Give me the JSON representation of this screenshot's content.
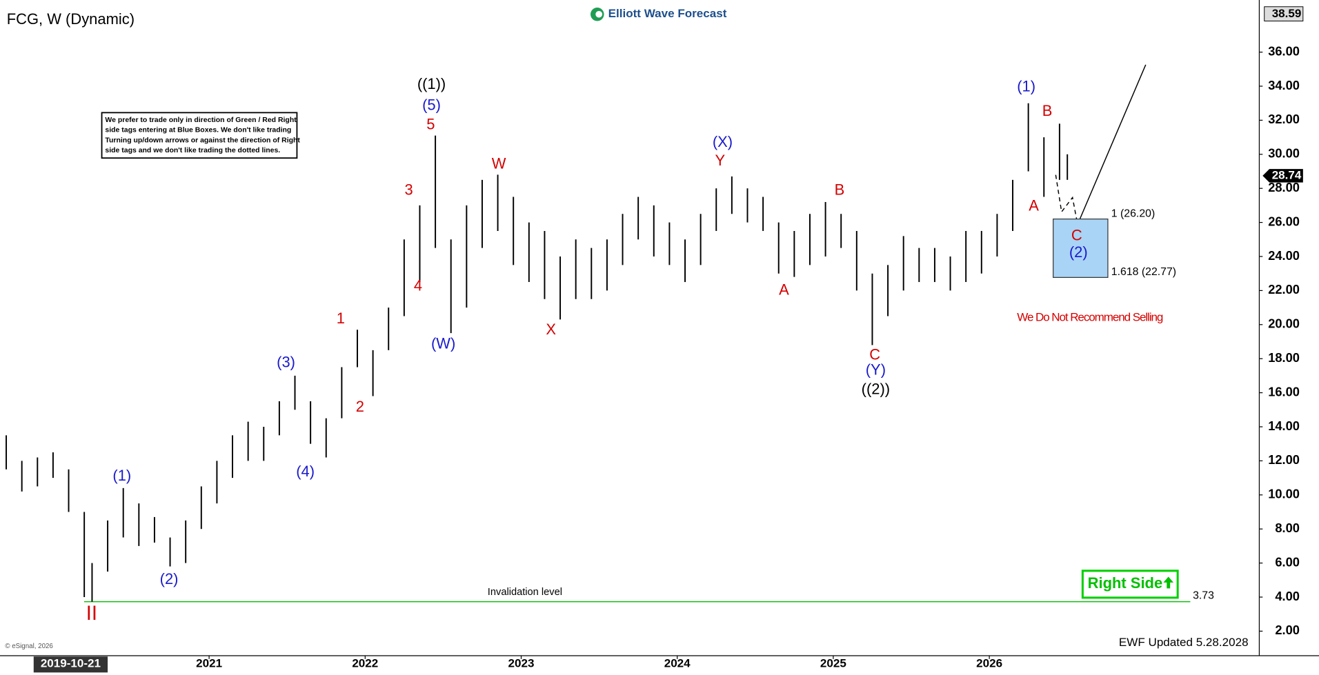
{
  "chart_data": {
    "type": "ohlc",
    "title": "FCG, W (Dynamic)",
    "logo": "Elliott Wave Forecast",
    "disclaimer": [
      "We prefer to trade only in direction of Green / Red Right",
      "side tags entering at Blue Boxes. We don't like trading",
      "Turning up/down arrows or against the direction of Right",
      "side tags and we don't like trading the dotted lines."
    ],
    "xlim": [
      2019.66,
      2027.73
    ],
    "xticks": [
      2021,
      2022,
      2023,
      2024,
      2025,
      2026
    ],
    "cursor_date": "2019-10-21",
    "ylim": [
      0.56,
      39.06
    ],
    "yticks": [
      {
        "value": 2,
        "label": "2.00"
      },
      {
        "value": 4,
        "label": "4.00"
      },
      {
        "value": 6,
        "label": "6.00"
      },
      {
        "value": 8,
        "label": "8.00"
      },
      {
        "value": 10,
        "label": "10.00"
      },
      {
        "value": 12,
        "label": "12.00"
      },
      {
        "value": 14,
        "label": "14.00"
      },
      {
        "value": 16,
        "label": "16.00"
      },
      {
        "value": 18,
        "label": "18.00"
      },
      {
        "value": 20,
        "label": "20.00"
      },
      {
        "value": 22,
        "label": "22.00"
      },
      {
        "value": 24,
        "label": "24.00"
      },
      {
        "value": 26,
        "label": "26.00"
      },
      {
        "value": 28,
        "label": "28.00"
      },
      {
        "value": 30,
        "label": "30.00"
      },
      {
        "value": 32,
        "label": "32.00"
      },
      {
        "value": 34,
        "label": "34.00"
      },
      {
        "value": 36,
        "label": "36.00"
      }
    ],
    "series": [
      {
        "color": "#000000",
        "x": [
          2019.7,
          2019.8,
          2019.9,
          2020.0,
          2020.1,
          2020.2,
          2020.25,
          2020.35,
          2020.45,
          2020.55,
          2020.65,
          2020.75,
          2020.85,
          2020.95,
          2021.05,
          2021.15,
          2021.25,
          2021.35,
          2021.45,
          2021.55,
          2021.65,
          2021.75,
          2021.85,
          2021.95,
          2022.05,
          2022.15,
          2022.25,
          2022.35,
          2022.45,
          2022.55,
          2022.65,
          2022.75,
          2022.85,
          2022.95,
          2023.05,
          2023.15,
          2023.25,
          2023.35,
          2023.45,
          2023.55,
          2023.65,
          2023.75,
          2023.85,
          2023.95,
          2024.05,
          2024.15,
          2024.25,
          2024.35,
          2024.45,
          2024.55,
          2024.65,
          2024.75,
          2024.85,
          2024.95,
          2025.05,
          2025.15,
          2025.25,
          2025.35,
          2025.45,
          2025.55,
          2025.65,
          2025.75,
          2025.85,
          2025.95,
          2026.05,
          2026.15,
          2026.25,
          2026.35,
          2026.45,
          2026.5
        ],
        "high": [
          13.5,
          12.0,
          12.2,
          12.5,
          11.5,
          9.0,
          6.0,
          8.5,
          10.4,
          9.5,
          8.7,
          7.5,
          8.5,
          10.5,
          12.0,
          13.5,
          14.3,
          14.0,
          15.5,
          17.0,
          15.5,
          14.5,
          17.5,
          19.7,
          18.5,
          21.0,
          25.0,
          27.0,
          31.1,
          25.0,
          27.0,
          28.5,
          28.8,
          27.5,
          26.0,
          25.5,
          24.0,
          25.0,
          24.5,
          25.0,
          26.5,
          27.5,
          27.0,
          26.0,
          25.0,
          26.5,
          28.0,
          28.7,
          28.0,
          27.5,
          26.0,
          25.5,
          26.5,
          27.2,
          26.5,
          25.5,
          23.0,
          23.5,
          25.2,
          24.5,
          24.5,
          24.0,
          25.5,
          25.5,
          26.5,
          28.5,
          33.0,
          31.0,
          31.8,
          30.0
        ],
        "low": [
          11.5,
          10.2,
          10.5,
          11.0,
          9.0,
          4.0,
          3.73,
          5.5,
          7.5,
          7.0,
          7.2,
          5.8,
          6.0,
          8.0,
          9.5,
          11.0,
          12.0,
          12.0,
          13.5,
          15.0,
          13.0,
          12.2,
          14.5,
          17.5,
          15.8,
          18.5,
          20.5,
          22.5,
          24.5,
          19.5,
          21.0,
          24.5,
          25.5,
          23.5,
          22.5,
          21.5,
          20.3,
          21.5,
          21.5,
          22.0,
          23.5,
          25.0,
          24.0,
          23.5,
          22.5,
          23.5,
          25.5,
          26.5,
          26.0,
          25.5,
          23.0,
          22.8,
          23.5,
          24.0,
          24.5,
          22.0,
          18.8,
          20.5,
          22.0,
          22.5,
          22.5,
          22.0,
          22.5,
          23.0,
          24.0,
          25.5,
          29.0,
          27.5,
          28.5,
          28.5
        ]
      }
    ],
    "last_price": {
      "value": 28.74,
      "label": "28.74"
    },
    "top_price": {
      "value": 38.59,
      "label": "38.59"
    },
    "invalidation": {
      "value": 3.73,
      "label": "3.73",
      "text": "Invalidation level",
      "color": "#00c000"
    },
    "fib_box": {
      "levels": [
        26.2,
        22.77
      ],
      "labels": [
        "1 (26.20)",
        "1.618 (22.77)"
      ],
      "color": "#a9d4f5"
    },
    "annotations": [
      {
        "text": "((1))",
        "color": "#000000"
      },
      {
        "text": "(5)",
        "color": "#1a1acc"
      },
      {
        "text": "5",
        "color": "#d40000"
      },
      {
        "text": "3",
        "color": "#d40000"
      },
      {
        "text": "4",
        "color": "#d40000"
      },
      {
        "text": "1",
        "color": "#d40000"
      },
      {
        "text": "2",
        "color": "#d40000"
      },
      {
        "text": "(3)",
        "color": "#1a1acc"
      },
      {
        "text": "(4)",
        "color": "#1a1acc"
      },
      {
        "text": "(1)",
        "color": "#1a1acc"
      },
      {
        "text": "(2)",
        "color": "#1a1acc"
      },
      {
        "text": "II",
        "color": "#d40000"
      },
      {
        "text": "(W)",
        "color": "#1a1acc"
      },
      {
        "text": "W",
        "color": "#d40000"
      },
      {
        "text": "X",
        "color": "#d40000"
      },
      {
        "text": "(X)",
        "color": "#1a1acc"
      },
      {
        "text": "Y",
        "color": "#d40000"
      },
      {
        "text": "B",
        "color": "#d40000"
      },
      {
        "text": "A",
        "color": "#d40000"
      },
      {
        "text": "C",
        "color": "#d40000"
      },
      {
        "text": "(Y)",
        "color": "#1a1acc"
      },
      {
        "text": "((2))",
        "color": "#000000"
      },
      {
        "text": "(1)",
        "color": "#1a1acc"
      },
      {
        "text": "B",
        "color": "#d40000"
      },
      {
        "text": "A",
        "color": "#d40000"
      },
      {
        "text": "C",
        "color": "#d40000"
      },
      {
        "text": "(2)",
        "color": "#1a1acc"
      }
    ],
    "note": "We Do Not Recommend Selling",
    "right_side": "Right Side",
    "updated": "EWF Updated 5.28.2028",
    "copyright": "© eSignal, 2026"
  }
}
